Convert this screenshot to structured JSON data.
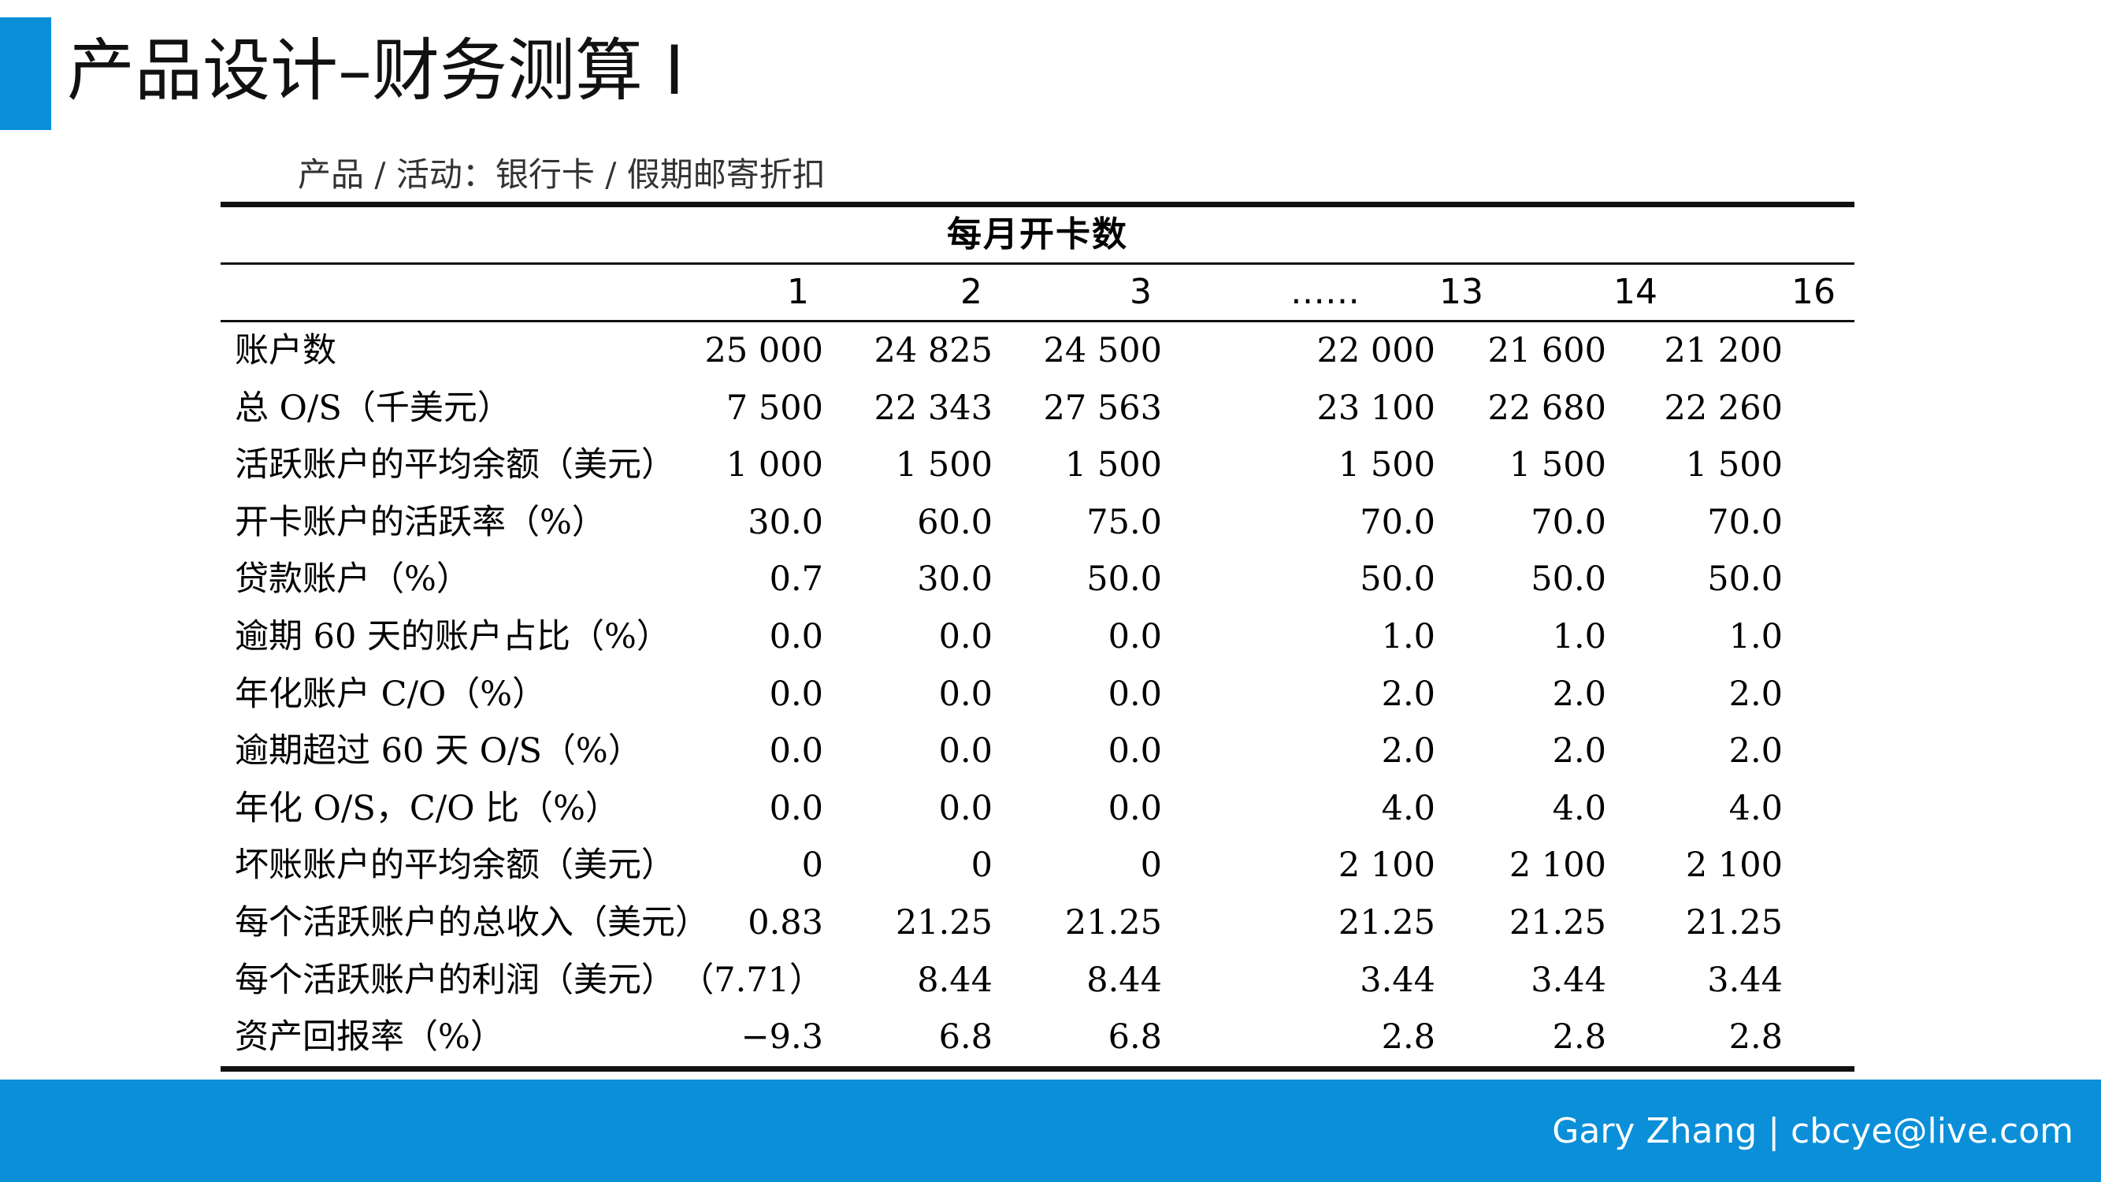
{
  "slide": {
    "title": "产品设计–财务测算 I"
  },
  "table": {
    "caption": "产品 / 活动：银行卡 / 假期邮寄折扣",
    "group_header": "每月开卡数",
    "columns": [
      "1",
      "2",
      "3",
      "……",
      "13",
      "14",
      "16"
    ],
    "rows": [
      {
        "label": "账户数",
        "values": [
          "25 000",
          "24 825",
          "24 500",
          "22 000",
          "21 600",
          "21 200"
        ]
      },
      {
        "label": "总 O/S（千美元）",
        "values": [
          "7 500",
          "22 343",
          "27 563",
          "23 100",
          "22 680",
          "22 260"
        ]
      },
      {
        "label": "活跃账户的平均余额（美元）",
        "values": [
          "1 000",
          "1 500",
          "1 500",
          "1 500",
          "1 500",
          "1 500"
        ]
      },
      {
        "label": "开卡账户的活跃率（%）",
        "values": [
          "30.0",
          "60.0",
          "75.0",
          "70.0",
          "70.0",
          "70.0"
        ]
      },
      {
        "label": "贷款账户（%）",
        "values": [
          "0.7",
          "30.0",
          "50.0",
          "50.0",
          "50.0",
          "50.0"
        ]
      },
      {
        "label": "逾期 60 天的账户占比（%）",
        "values": [
          "0.0",
          "0.0",
          "0.0",
          "1.0",
          "1.0",
          "1.0"
        ]
      },
      {
        "label": "年化账户 C/O（%）",
        "values": [
          "0.0",
          "0.0",
          "0.0",
          "2.0",
          "2.0",
          "2.0"
        ]
      },
      {
        "label": "逾期超过 60 天 O/S（%）",
        "values": [
          "0.0",
          "0.0",
          "0.0",
          "2.0",
          "2.0",
          "2.0"
        ]
      },
      {
        "label": "年化 O/S，C/O 比（%）",
        "values": [
          "0.0",
          "0.0",
          "0.0",
          "4.0",
          "4.0",
          "4.0"
        ]
      },
      {
        "label": "坏账账户的平均余额（美元）",
        "values": [
          "0",
          "0",
          "0",
          "2 100",
          "2 100",
          "2 100"
        ]
      },
      {
        "label": "每个活跃账户的总收入（美元）",
        "values": [
          "0.83",
          "21.25",
          "21.25",
          "21.25",
          "21.25",
          "21.25"
        ]
      },
      {
        "label": "每个活跃账户的利润（美元）",
        "values": [
          "（7.71）",
          "8.44",
          "8.44",
          "3.44",
          "3.44",
          "3.44"
        ]
      },
      {
        "label": "资产回报率（%）",
        "values": [
          "−9.3",
          "6.8",
          "6.8",
          "2.8",
          "2.8",
          "2.8"
        ]
      }
    ]
  },
  "footer": {
    "text": "Gary Zhang | cbcye@live.com"
  },
  "colors": {
    "accent": "#0a8fd8"
  }
}
